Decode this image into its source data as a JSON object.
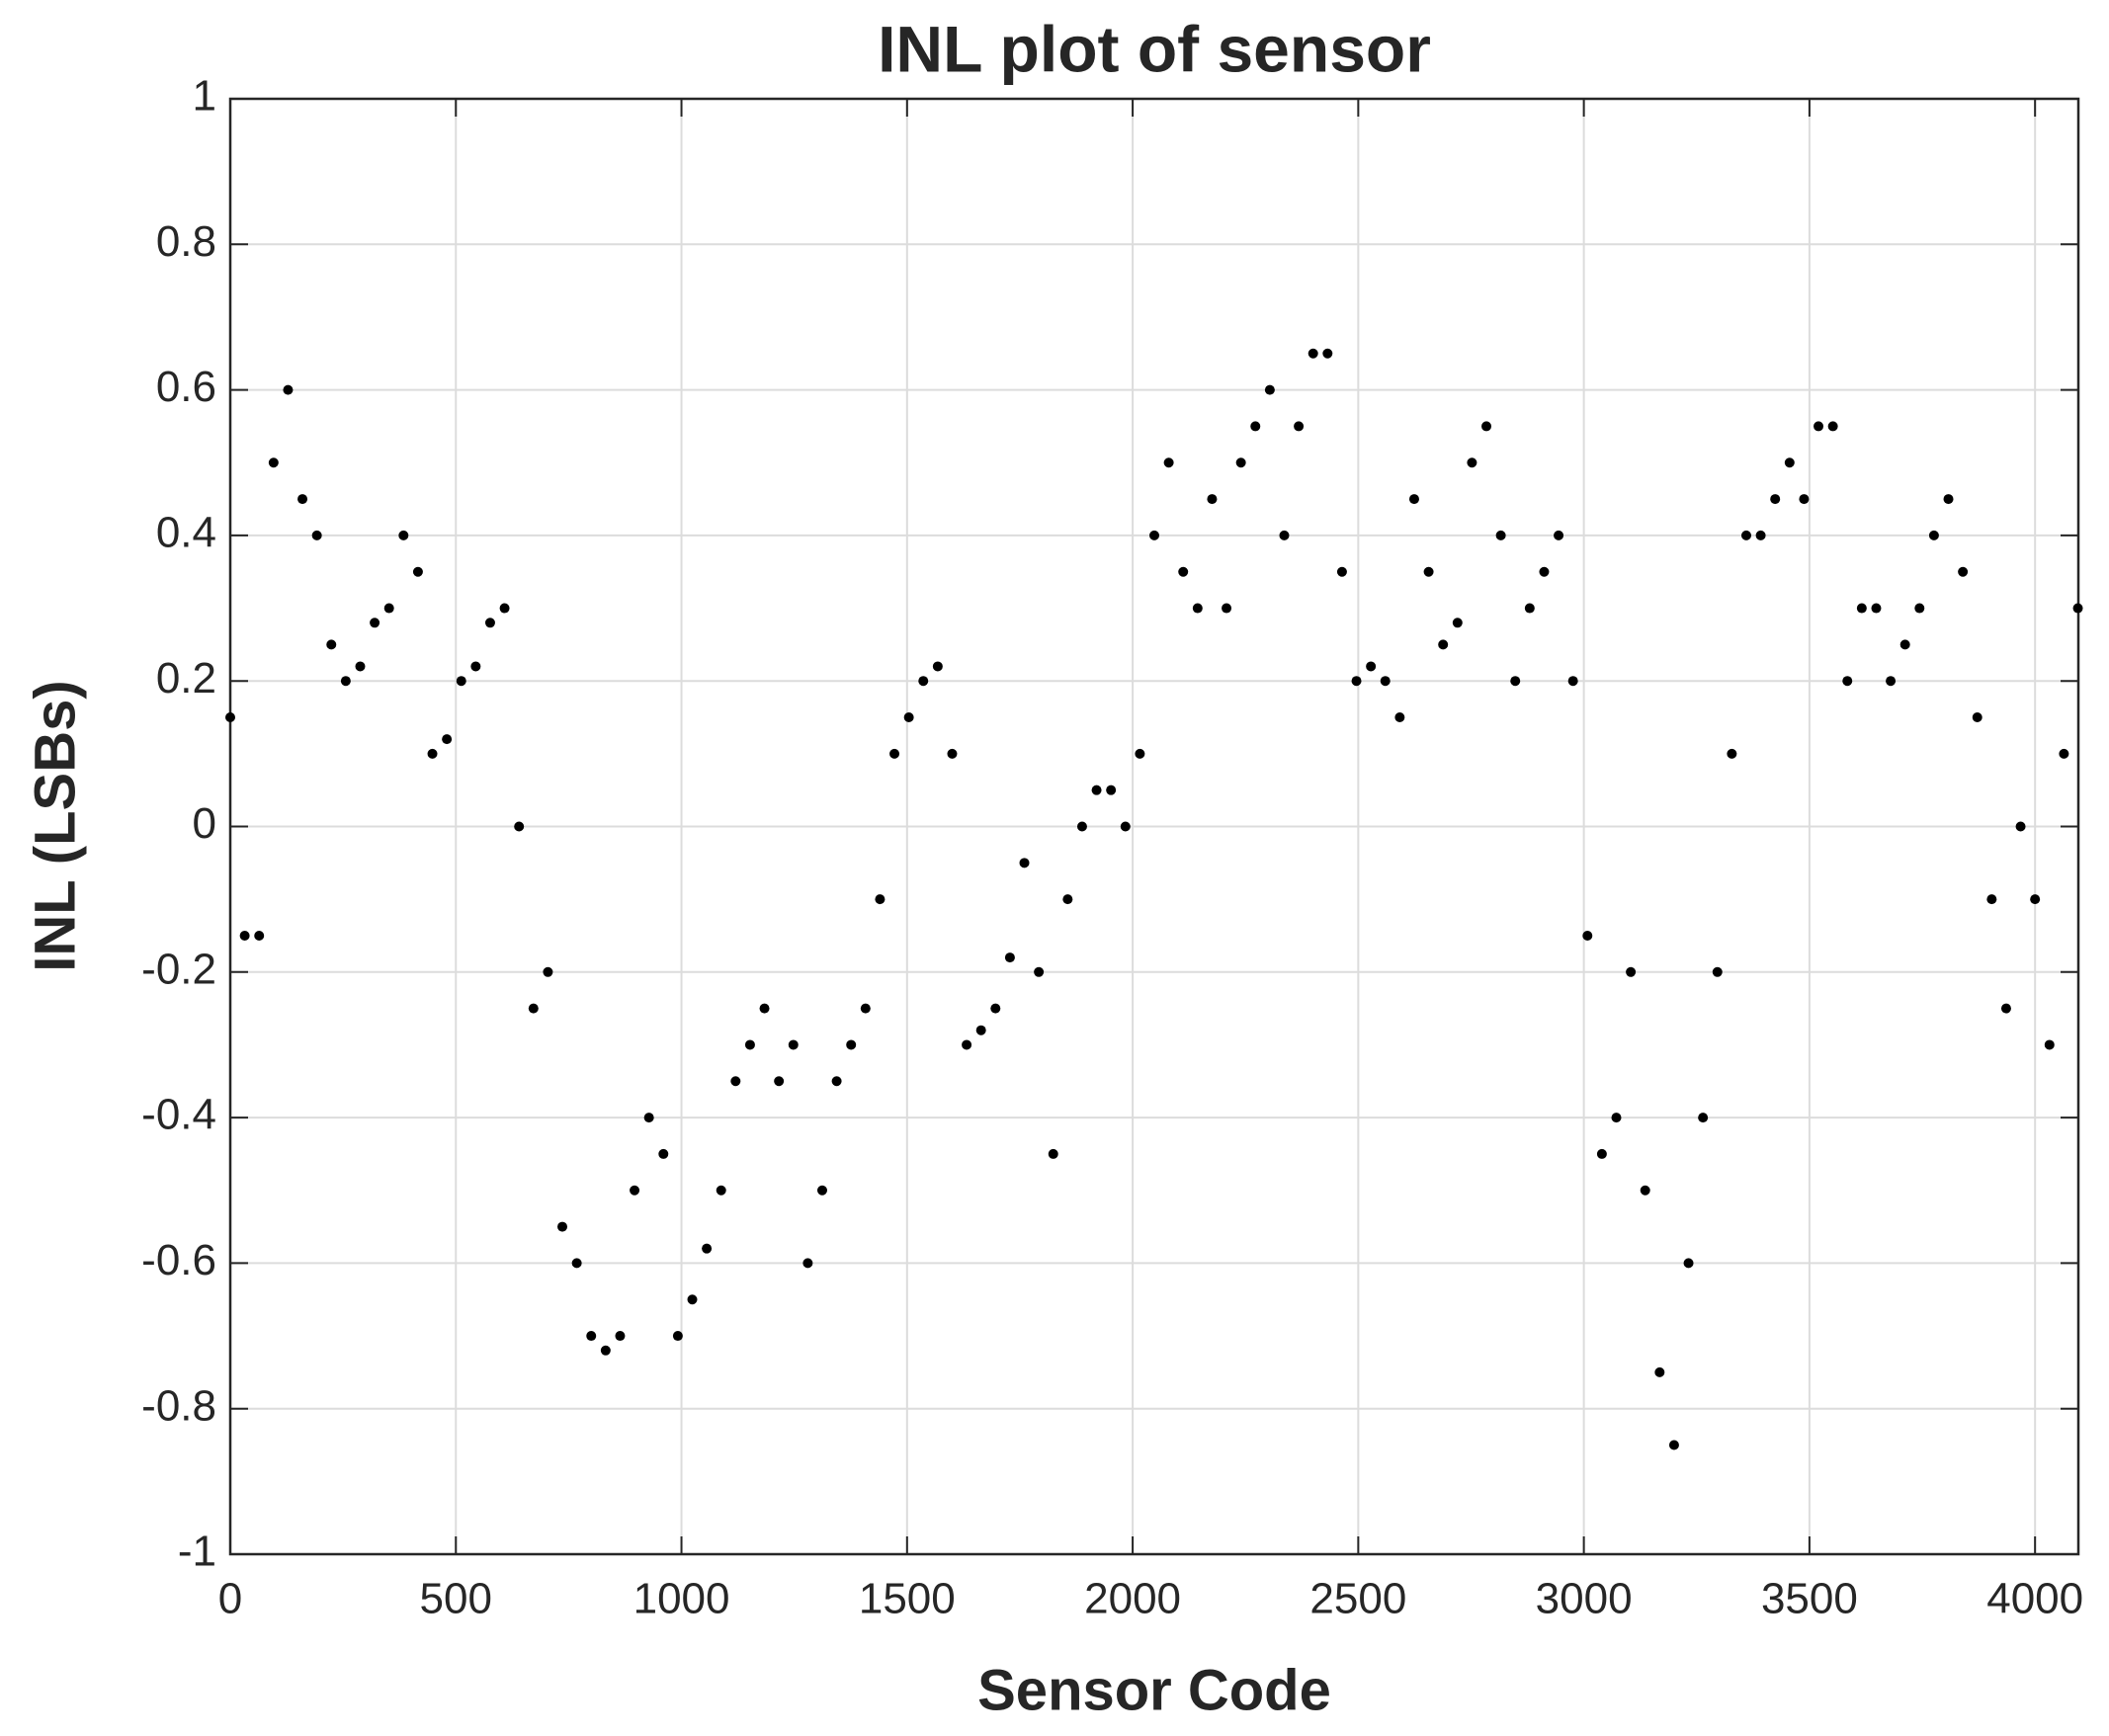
{
  "chart_data": {
    "type": "scatter",
    "title": "INL plot of sensor",
    "xlabel": "Sensor Code",
    "ylabel": "INL (LSBs)",
    "color": "#000000",
    "grid": true,
    "xlim": [
      0,
      4096
    ],
    "ylim": [
      -1,
      1
    ],
    "xticks": [
      0,
      500,
      1000,
      1500,
      2000,
      2500,
      3000,
      3500,
      4000
    ],
    "yticks": [
      -1,
      -0.8,
      -0.6,
      -0.4,
      -0.2,
      0,
      0.2,
      0.4,
      0.6,
      0.8,
      1
    ],
    "x": [
      0,
      32,
      64,
      96,
      128,
      160,
      192,
      224,
      256,
      288,
      320,
      352,
      384,
      416,
      448,
      480,
      512,
      544,
      576,
      608,
      640,
      672,
      704,
      736,
      768,
      800,
      832,
      864,
      896,
      928,
      960,
      992,
      1024,
      1056,
      1088,
      1120,
      1152,
      1184,
      1216,
      1248,
      1280,
      1312,
      1344,
      1376,
      1408,
      1440,
      1472,
      1504,
      1536,
      1568,
      1600,
      1632,
      1664,
      1696,
      1728,
      1760,
      1792,
      1824,
      1856,
      1888,
      1920,
      1952,
      1984,
      2016,
      2048,
      2080,
      2112,
      2144,
      2176,
      2208,
      2240,
      2272,
      2304,
      2336,
      2368,
      2400,
      2432,
      2464,
      2496,
      2528,
      2560,
      2592,
      2624,
      2656,
      2688,
      2720,
      2752,
      2784,
      2816,
      2848,
      2880,
      2912,
      2944,
      2976,
      3008,
      3040,
      3072,
      3104,
      3136,
      3168,
      3200,
      3232,
      3264,
      3296,
      3328,
      3360,
      3392,
      3424,
      3456,
      3488,
      3520,
      3552,
      3584,
      3616,
      3648,
      3680,
      3712,
      3744,
      3776,
      3808,
      3840,
      3872,
      3904,
      3936,
      3968,
      4000,
      4032,
      4064,
      4095
    ],
    "values": [
      0.15,
      -0.15,
      -0.15,
      0.5,
      0.6,
      0.45,
      0.4,
      0.25,
      0.2,
      0.22,
      0.28,
      0.3,
      0.4,
      0.35,
      0.1,
      0.12,
      0.2,
      0.22,
      0.28,
      0.3,
      0.0,
      -0.25,
      -0.2,
      -0.55,
      -0.6,
      -0.7,
      -0.72,
      -0.7,
      -0.5,
      -0.4,
      -0.45,
      -0.7,
      -0.65,
      -0.58,
      -0.5,
      -0.35,
      -0.3,
      -0.25,
      -0.35,
      -0.3,
      -0.6,
      -0.5,
      -0.35,
      -0.3,
      -0.25,
      -0.1,
      0.1,
      0.15,
      0.2,
      0.22,
      0.1,
      -0.3,
      -0.28,
      -0.25,
      -0.18,
      -0.05,
      -0.2,
      -0.45,
      -0.1,
      0.0,
      0.05,
      0.05,
      0.0,
      0.1,
      0.4,
      0.5,
      0.35,
      0.3,
      0.45,
      0.3,
      0.5,
      0.55,
      0.6,
      0.4,
      0.55,
      0.65,
      0.65,
      0.35,
      0.2,
      0.22,
      0.2,
      0.15,
      0.45,
      0.35,
      0.25,
      0.28,
      0.5,
      0.55,
      0.4,
      0.2,
      0.3,
      0.35,
      0.4,
      0.2,
      -0.15,
      -0.45,
      -0.4,
      -0.2,
      -0.5,
      -0.75,
      -0.85,
      -0.6,
      -0.4,
      -0.2,
      0.1,
      0.4,
      0.4,
      0.45,
      0.5,
      0.45,
      0.55,
      0.55,
      0.2,
      0.3,
      0.3,
      0.2,
      0.25,
      0.3,
      0.4,
      0.45,
      0.35,
      0.15,
      -0.1,
      -0.25,
      0.0,
      -0.1,
      -0.3,
      0.1,
      0.3
    ]
  }
}
